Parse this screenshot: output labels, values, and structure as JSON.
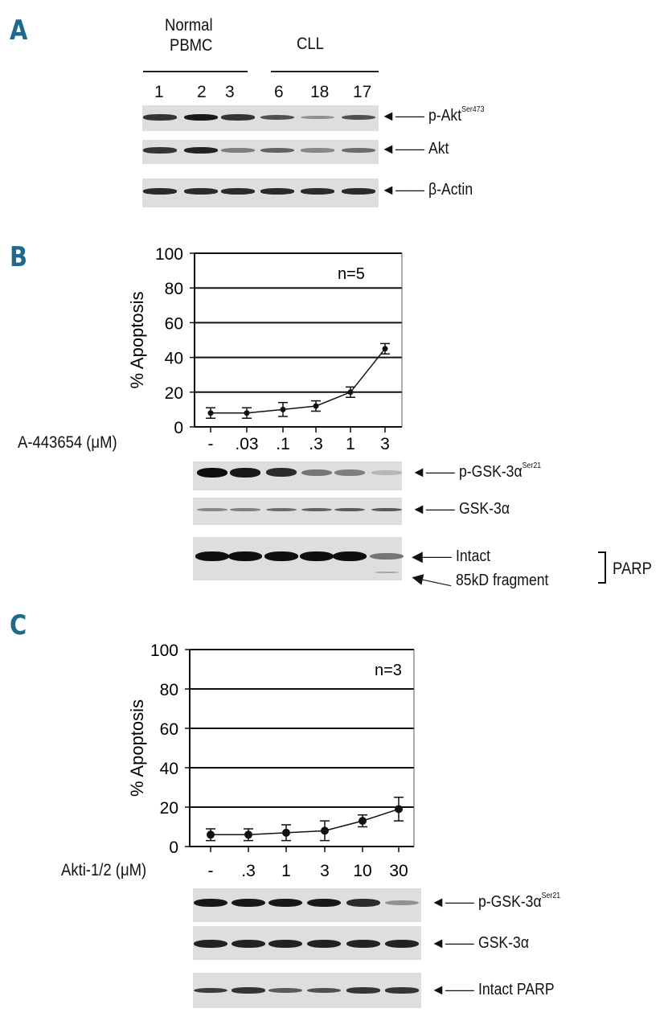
{
  "panel_a": {
    "letter": "A",
    "group_normal_line1": "Normal",
    "group_normal_line2": "PBMC",
    "group_cll": "CLL",
    "lanes": [
      "1",
      "2",
      "3",
      "6",
      "18",
      "17"
    ],
    "blots": [
      {
        "label_main": "p-Akt",
        "label_sup": "Ser473",
        "intensities": [
          0.8,
          0.95,
          0.8,
          0.65,
          0.3,
          0.65
        ]
      },
      {
        "label_main": "Akt",
        "label_sup": "",
        "intensities": [
          0.8,
          0.9,
          0.4,
          0.55,
          0.35,
          0.5
        ]
      },
      {
        "label_main": "β-Actin",
        "label_sup": "",
        "intensities": [
          0.85,
          0.85,
          0.85,
          0.85,
          0.85,
          0.85
        ]
      }
    ]
  },
  "panel_b": {
    "letter": "B",
    "xlabel": "A-443654 (μM)",
    "blots": [
      {
        "label_main": "p-GSK-3α",
        "label_sup": "Ser21",
        "intensities": [
          1.0,
          0.95,
          0.85,
          0.45,
          0.4,
          0.1
        ]
      },
      {
        "label_main": "GSK-3α",
        "label_sup": "",
        "intensities": [
          0.35,
          0.4,
          0.5,
          0.55,
          0.6,
          0.6
        ]
      }
    ],
    "parp_intact_label": "Intact",
    "parp_fragment_label": "85kD fragment",
    "parp_bracket_label": "PARP",
    "parp_intact_intensities": [
      1.0,
      1.0,
      1.0,
      1.0,
      1.0,
      0.45
    ],
    "parp_fragment_intensities": [
      0,
      0,
      0,
      0,
      0,
      0.2
    ]
  },
  "panel_c": {
    "letter": "C",
    "xlabel": "Akti-1/2 (μM)",
    "blots": [
      {
        "label_main": "p-GSK-3α",
        "label_sup": "Ser21",
        "intensities": [
          0.95,
          0.95,
          0.95,
          0.95,
          0.85,
          0.3
        ]
      },
      {
        "label_main": "GSK-3α",
        "label_sup": "",
        "intensities": [
          0.9,
          0.9,
          0.9,
          0.9,
          0.9,
          0.9
        ]
      },
      {
        "label_main": "Intact PARP",
        "label_sup": "",
        "intensities": [
          0.75,
          0.8,
          0.6,
          0.65,
          0.8,
          0.8
        ]
      }
    ]
  },
  "chart_data": [
    {
      "type": "line",
      "panel": "B",
      "title": "",
      "xlabel": "A-443654 (μM)",
      "ylabel": "% Apoptosis",
      "annotation": "n=5",
      "categories": [
        "-",
        ".03",
        ".1",
        ".3",
        "1",
        "3"
      ],
      "values": [
        8,
        8,
        10,
        12,
        20,
        45
      ],
      "errors": [
        3,
        3,
        4,
        3,
        3,
        3
      ],
      "ylim": [
        0,
        100
      ],
      "yticks": [
        0,
        20,
        40,
        60,
        80,
        100
      ],
      "grid": true
    },
    {
      "type": "line",
      "panel": "C",
      "title": "",
      "xlabel": "Akti-1/2 (μM)",
      "ylabel": "% Apoptosis",
      "annotation": "n=3",
      "categories": [
        "-",
        ".3",
        "1",
        "3",
        "10",
        "30"
      ],
      "values": [
        6,
        6,
        7,
        8,
        13,
        19
      ],
      "errors": [
        3,
        3,
        4,
        5,
        3,
        6
      ],
      "ylim": [
        0,
        100
      ],
      "yticks": [
        0,
        20,
        40,
        60,
        80,
        100
      ],
      "grid": true
    }
  ]
}
